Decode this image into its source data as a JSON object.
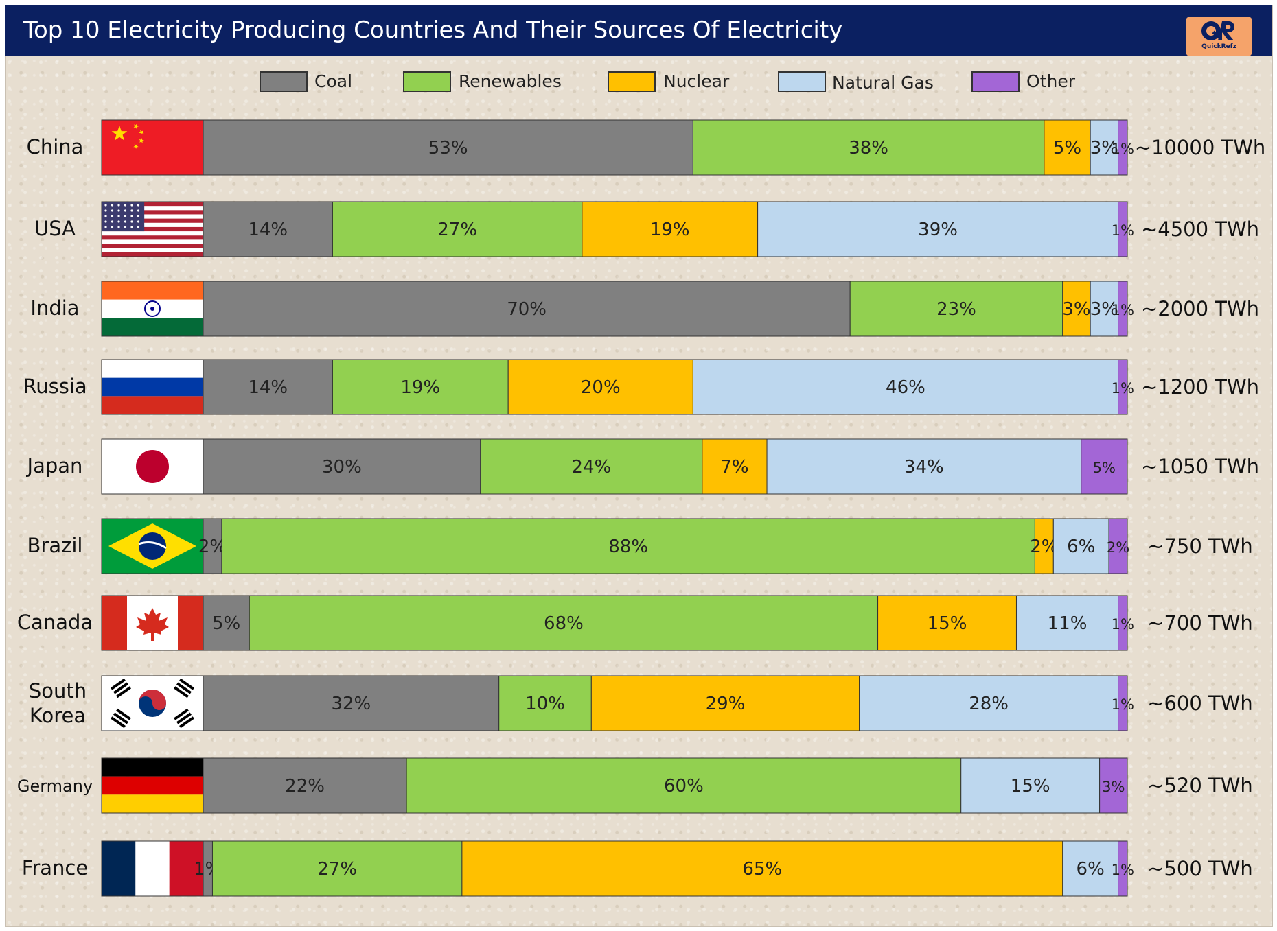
{
  "title": "Top 10 Electricity Producing Countries And Their Sources Of Electricity",
  "logo": {
    "text": "QuickRefz",
    "mark": "QR"
  },
  "colors": {
    "header_bg": "#0b2061",
    "coal": "#808080",
    "renewables": "#92d050",
    "nuclear": "#ffc000",
    "natural_gas": "#bdd7ee",
    "other": "#a366d6"
  },
  "chart_data": {
    "type": "bar",
    "orientation": "horizontal",
    "stacked": "percent",
    "legend_position": "top",
    "categories": [
      "China",
      "USA",
      "India",
      "Russia",
      "Japan",
      "Brazil",
      "Canada",
      "South Korea",
      "Germany",
      "France"
    ],
    "series": [
      {
        "name": "Coal",
        "color": "#808080",
        "values": [
          53,
          14,
          70,
          14,
          30,
          2,
          5,
          32,
          22,
          1
        ]
      },
      {
        "name": "Renewables",
        "color": "#92d050",
        "values": [
          38,
          27,
          23,
          19,
          24,
          88,
          68,
          10,
          60,
          27
        ]
      },
      {
        "name": "Nuclear",
        "color": "#ffc000",
        "values": [
          5,
          19,
          3,
          20,
          7,
          2,
          15,
          29,
          null,
          65
        ]
      },
      {
        "name": "Natural Gas",
        "color": "#bdd7ee",
        "values": [
          3,
          39,
          3,
          46,
          34,
          6,
          11,
          28,
          15,
          6
        ]
      },
      {
        "name": "Other",
        "color": "#a366d6",
        "values": [
          1,
          1,
          1,
          1,
          5,
          2,
          1,
          1,
          3,
          1
        ]
      }
    ],
    "totals": [
      "~10000 TWh",
      "~4500 TWh",
      "~2000 TWh",
      "~1200 TWh",
      "~1050 TWh",
      "~750 TWh",
      "~700 TWh",
      "~600 TWh",
      "~520 TWh",
      "~500 TWh"
    ],
    "flags": [
      "china-flag",
      "usa-flag",
      "india-flag",
      "russia-flag",
      "japan-flag",
      "brazil-flag",
      "canada-flag",
      "south-korea-flag",
      "germany-flag",
      "france-flag"
    ]
  }
}
